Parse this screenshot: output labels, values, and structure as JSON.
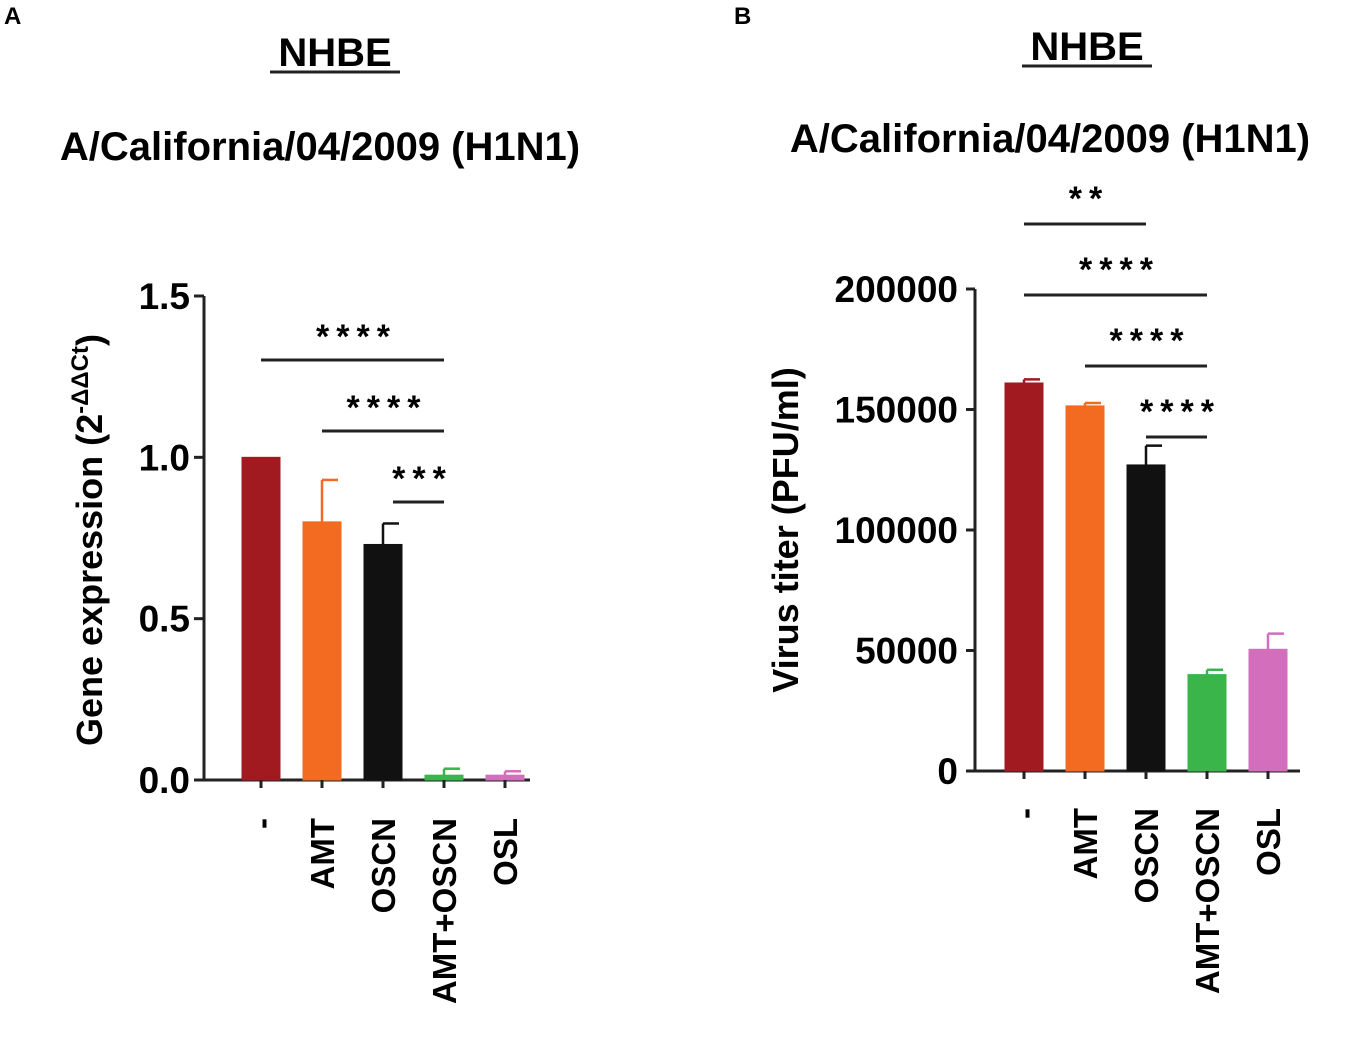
{
  "panels": [
    {
      "letter": "A",
      "heading": "NHBE",
      "subheading": "A/California/04/2009 (H1N1)"
    },
    {
      "letter": "B",
      "heading": "NHBE",
      "subheading": "A/California/04/2009 (H1N1)"
    }
  ],
  "chart_data": [
    {
      "type": "bar",
      "title": "A/California/04/2009 (H1N1)",
      "ylabel_main": "Gene expression (2",
      "ylabel_sup": "-ΔΔCt",
      "ylabel_close": ")",
      "categories": [
        "-",
        "AMT",
        "OSCN",
        "AMT+OSCN",
        "OSL"
      ],
      "values": [
        1.0,
        0.8,
        0.73,
        0.015,
        0.015
      ],
      "errors": [
        0,
        0.13,
        0.065,
        0.02,
        0.012
      ],
      "colors": [
        "#a11a1f",
        "#f26b21",
        "#111111",
        "#39b54a",
        "#d36ebd"
      ],
      "ylim": [
        0,
        1.5
      ],
      "yticks": [
        0.0,
        0.5,
        1.0,
        1.5
      ],
      "ytick_labels": [
        "0.0",
        "0.5",
        "1.0",
        "1.5"
      ],
      "significance": [
        {
          "from": "-",
          "to": "AMT+OSCN",
          "label": "****"
        },
        {
          "from": "AMT",
          "to": "AMT+OSCN",
          "label": "****"
        },
        {
          "from": "OSCN",
          "to": "AMT+OSCN",
          "label": "***"
        }
      ]
    },
    {
      "type": "bar",
      "title": "A/California/04/2009 (H1N1)",
      "ylabel": "Virus titer (PFU/ml)",
      "categories": [
        "-",
        "AMT",
        "OSCN",
        "AMT+OSCN",
        "OSL"
      ],
      "values": [
        161000,
        151500,
        127000,
        40000,
        50500
      ],
      "errors": [
        1500,
        1200,
        8000,
        2000,
        6500
      ],
      "colors": [
        "#a11a1f",
        "#f26b21",
        "#111111",
        "#39b54a",
        "#d36ebd"
      ],
      "ylim": [
        0,
        200000
      ],
      "yticks": [
        0,
        50000,
        100000,
        150000,
        200000
      ],
      "ytick_labels": [
        "0",
        "50000",
        "100000",
        "150000",
        "200000"
      ],
      "significance": [
        {
          "from": "-",
          "to": "OSCN",
          "label": "**"
        },
        {
          "from": "-",
          "to": "AMT+OSCN",
          "label": "****"
        },
        {
          "from": "AMT",
          "to": "AMT+OSCN",
          "label": "****"
        },
        {
          "from": "OSCN",
          "to": "AMT+OSCN",
          "label": "****"
        }
      ]
    }
  ]
}
